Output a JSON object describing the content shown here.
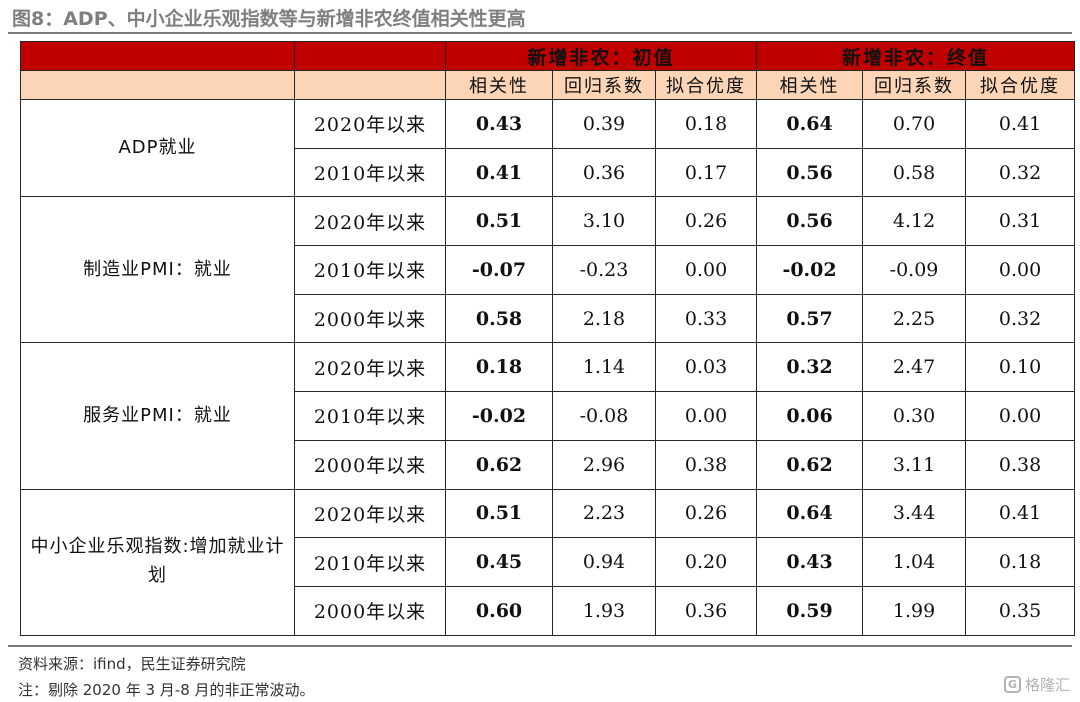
{
  "title": "图8：ADP、中小企业乐观指数等与新增非农终值相关性更高",
  "header": {
    "group_initial": "新增非农：初值",
    "group_final": "新增非农：终值",
    "columns": [
      "相关性",
      "回归系数",
      "拟合优度",
      "相关性",
      "回归系数",
      "拟合优度"
    ]
  },
  "groups": [
    {
      "name": "ADP就业",
      "rows": [
        {
          "period": "2020年以来",
          "values": [
            "0.43",
            "0.39",
            "0.18",
            "0.64",
            "0.70",
            "0.41"
          ]
        },
        {
          "period": "2010年以来",
          "values": [
            "0.41",
            "0.36",
            "0.17",
            "0.56",
            "0.58",
            "0.32"
          ]
        }
      ]
    },
    {
      "name": "制造业PMI：就业",
      "rows": [
        {
          "period": "2020年以来",
          "values": [
            "0.51",
            "3.10",
            "0.26",
            "0.56",
            "4.12",
            "0.31"
          ]
        },
        {
          "period": "2010年以来",
          "values": [
            "-0.07",
            "-0.23",
            "0.00",
            "-0.02",
            "-0.09",
            "0.00"
          ]
        },
        {
          "period": "2000年以来",
          "values": [
            "0.58",
            "2.18",
            "0.33",
            "0.57",
            "2.25",
            "0.32"
          ]
        }
      ]
    },
    {
      "name": "服务业PMI：就业",
      "rows": [
        {
          "period": "2020年以来",
          "values": [
            "0.18",
            "1.14",
            "0.03",
            "0.32",
            "2.47",
            "0.10"
          ]
        },
        {
          "period": "2010年以来",
          "values": [
            "-0.02",
            "-0.08",
            "0.00",
            "0.06",
            "0.30",
            "0.00"
          ]
        },
        {
          "period": "2000年以来",
          "values": [
            "0.62",
            "2.96",
            "0.38",
            "0.62",
            "3.11",
            "0.38"
          ]
        }
      ]
    },
    {
      "name": "中小企业乐观指数:增加就业计划",
      "rows": [
        {
          "period": "2020年以来",
          "values": [
            "0.51",
            "2.23",
            "0.26",
            "0.64",
            "3.44",
            "0.41"
          ]
        },
        {
          "period": "2010年以来",
          "values": [
            "0.45",
            "0.94",
            "0.20",
            "0.43",
            "1.04",
            "0.18"
          ]
        },
        {
          "period": "2000年以来",
          "values": [
            "0.60",
            "1.93",
            "0.36",
            "0.59",
            "1.99",
            "0.35"
          ]
        }
      ]
    }
  ],
  "highlight_color": "#c00000",
  "header_color": "#c00000",
  "subheader_color": "#fbd5b5",
  "source": "资料来源：ifind，民生证券研究院",
  "note": "注：剔除 2020 年 3 月-8 月的非正常波动。",
  "watermark": {
    "icon": "gelonghui-logo-icon",
    "text": "格隆汇"
  }
}
